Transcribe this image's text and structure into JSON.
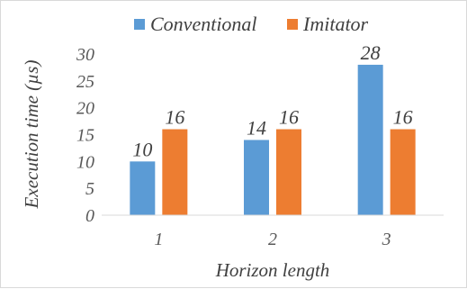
{
  "chart_data": {
    "type": "bar",
    "title": "",
    "xlabel": "Horizon length",
    "ylabel": "Execution time (µs)",
    "categories": [
      "1",
      "2",
      "3"
    ],
    "ylim": [
      0,
      30
    ],
    "yticks": [
      "0",
      "5",
      "10",
      "15",
      "20",
      "25",
      "30"
    ],
    "grid": false,
    "legend_position": "top",
    "series": [
      {
        "name": "Conventional",
        "color": "#5b9bd5",
        "values": [
          10,
          14,
          28
        ],
        "labels": [
          "10",
          "14",
          "28"
        ]
      },
      {
        "name": "Imitator",
        "color": "#ed7d31",
        "values": [
          16,
          16,
          16
        ],
        "labels": [
          "16",
          "16",
          "16"
        ]
      }
    ]
  }
}
